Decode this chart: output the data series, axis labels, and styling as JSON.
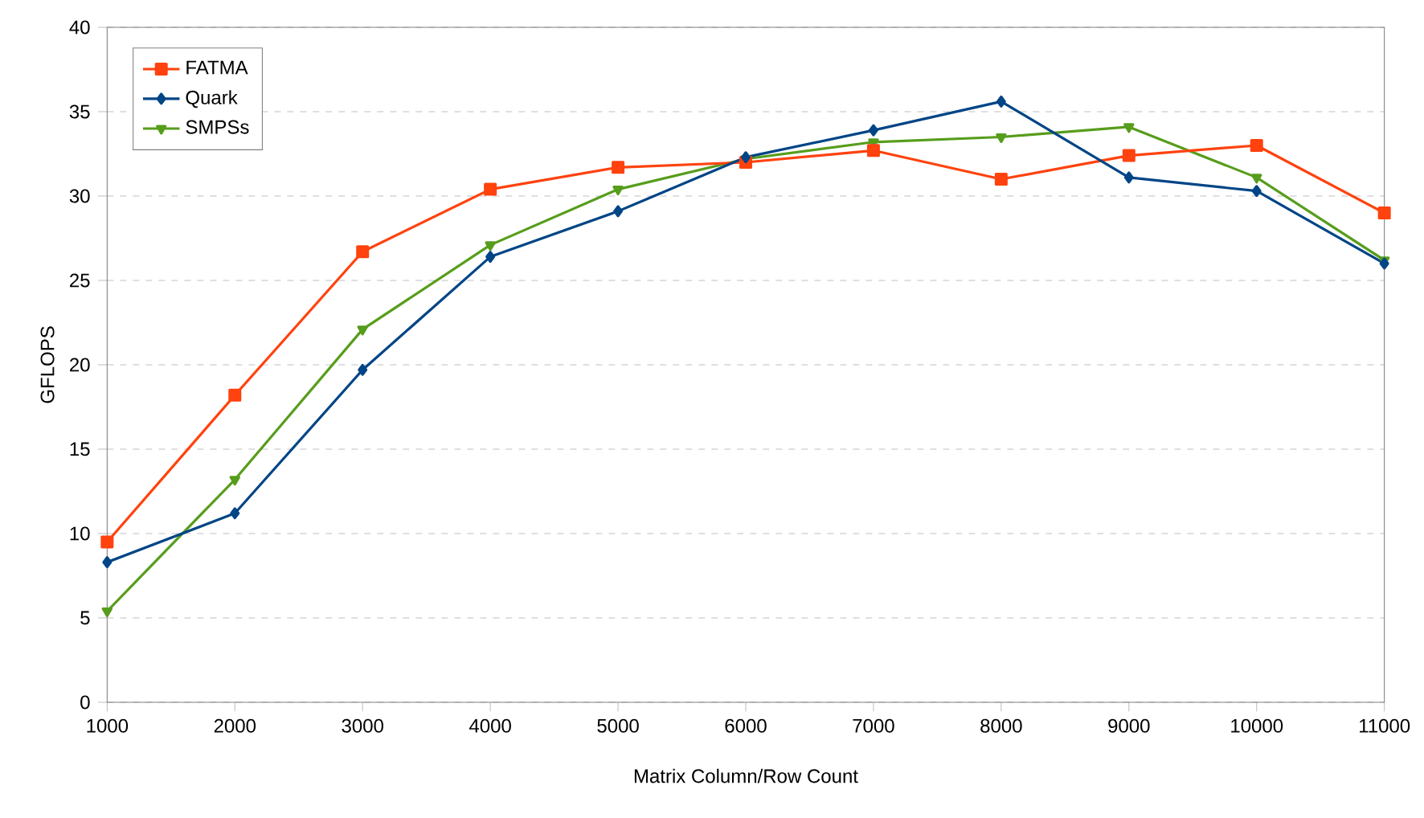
{
  "chart_data": {
    "type": "line",
    "xlabel": "Matrix Column/Row Count",
    "ylabel": "GFLOPS",
    "x": [
      1000,
      2000,
      3000,
      4000,
      5000,
      6000,
      7000,
      8000,
      9000,
      10000,
      11000
    ],
    "series": [
      {
        "name": "FATMA",
        "color": "#ff420e",
        "marker": "square",
        "values": [
          9.5,
          18.2,
          26.7,
          30.4,
          31.7,
          32.0,
          32.7,
          31.0,
          32.4,
          33.0,
          29.0
        ]
      },
      {
        "name": "Quark",
        "color": "#004586",
        "marker": "diamond",
        "values": [
          8.3,
          11.2,
          19.7,
          26.4,
          29.1,
          32.3,
          33.9,
          35.6,
          31.1,
          30.3,
          26.0
        ]
      },
      {
        "name": "SMPSs",
        "color": "#579d1c",
        "marker": "triangle",
        "values": [
          5.4,
          13.2,
          22.1,
          27.1,
          30.4,
          32.2,
          33.2,
          33.5,
          34.1,
          31.1,
          26.2
        ]
      }
    ],
    "xlim": [
      1000,
      11000
    ],
    "xticks": [
      1000,
      2000,
      3000,
      4000,
      5000,
      6000,
      7000,
      8000,
      9000,
      10000,
      11000
    ],
    "ylim": [
      0,
      40
    ],
    "yticks": [
      0,
      5,
      10,
      15,
      20,
      25,
      30,
      35,
      40
    ],
    "grid": "y",
    "legend": "top left",
    "line_style": "solid"
  }
}
